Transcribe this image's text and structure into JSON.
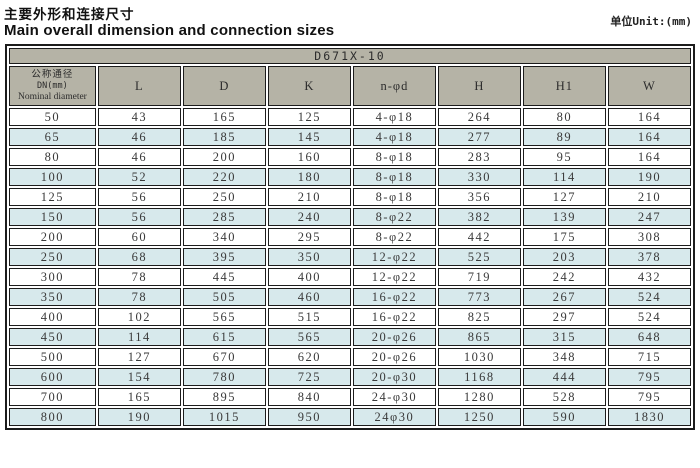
{
  "page": {
    "title_zh": "主要外形和连接尺寸",
    "title_en": "Main overall dimension and connection sizes",
    "unit_label": "单位Unit:(mm)"
  },
  "colors": {
    "header_bg": "#b5b3a6",
    "row_alt_bg": "#d7e9ec",
    "border": "#1c1c1c"
  },
  "table": {
    "model": "D671X-10",
    "dn_header": {
      "zh": "公称通径",
      "dn": "DN(mm)",
      "en": "Nominal diameter"
    },
    "columns": [
      "L",
      "D",
      "K",
      "n-φd",
      "H",
      "H1",
      "W"
    ],
    "rows": [
      [
        "50",
        "43",
        "165",
        "125",
        "4-φ18",
        "264",
        "80",
        "164"
      ],
      [
        "65",
        "46",
        "185",
        "145",
        "4-φ18",
        "277",
        "89",
        "164"
      ],
      [
        "80",
        "46",
        "200",
        "160",
        "8-φ18",
        "283",
        "95",
        "164"
      ],
      [
        "100",
        "52",
        "220",
        "180",
        "8-φ18",
        "330",
        "114",
        "190"
      ],
      [
        "125",
        "56",
        "250",
        "210",
        "8-φ18",
        "356",
        "127",
        "210"
      ],
      [
        "150",
        "56",
        "285",
        "240",
        "8-φ22",
        "382",
        "139",
        "247"
      ],
      [
        "200",
        "60",
        "340",
        "295",
        "8-φ22",
        "442",
        "175",
        "308"
      ],
      [
        "250",
        "68",
        "395",
        "350",
        "12-φ22",
        "525",
        "203",
        "378"
      ],
      [
        "300",
        "78",
        "445",
        "400",
        "12-φ22",
        "719",
        "242",
        "432"
      ],
      [
        "350",
        "78",
        "505",
        "460",
        "16-φ22",
        "773",
        "267",
        "524"
      ],
      [
        "400",
        "102",
        "565",
        "515",
        "16-φ22",
        "825",
        "297",
        "524"
      ],
      [
        "450",
        "114",
        "615",
        "565",
        "20-φ26",
        "865",
        "315",
        "648"
      ],
      [
        "500",
        "127",
        "670",
        "620",
        "20-φ26",
        "1030",
        "348",
        "715"
      ],
      [
        "600",
        "154",
        "780",
        "725",
        "20-φ30",
        "1168",
        "444",
        "795"
      ],
      [
        "700",
        "165",
        "895",
        "840",
        "24-φ30",
        "1280",
        "528",
        "795"
      ],
      [
        "800",
        "190",
        "1015",
        "950",
        "24φ30",
        "1250",
        "590",
        "1830"
      ]
    ]
  }
}
